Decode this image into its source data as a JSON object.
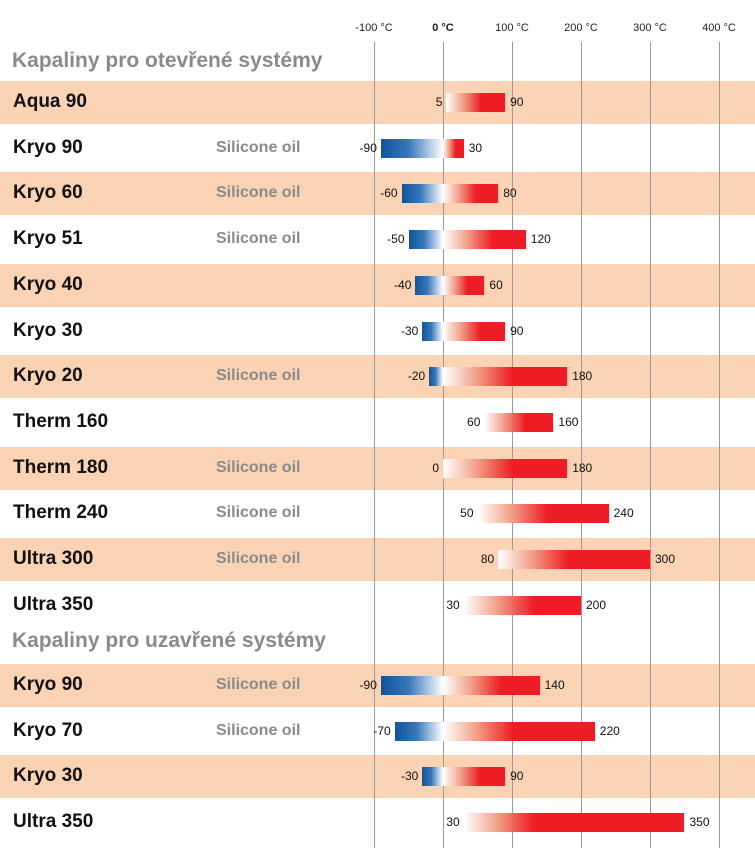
{
  "chart_data": {
    "type": "bar",
    "subtype": "floating-range",
    "x_ticks": [
      "-100 °C",
      "0 °C",
      "100 °C",
      "200 °C",
      "300 °C",
      "400 °C"
    ],
    "xlim": [
      -100,
      400
    ],
    "colors": {
      "cold": "#0a55a0",
      "hot": "#ee1c24",
      "band": "#fad2b4",
      "section_title": "#8a8a8a"
    },
    "sections": [
      {
        "title": "Kapaliny pro otevřené systémy",
        "rows": [
          {
            "name": "Aqua 90",
            "sub": "",
            "min": 5,
            "max": 90,
            "min_label": "5",
            "max_label": "90"
          },
          {
            "name": "Kryo 90",
            "sub": "Silicone oil",
            "min": -90,
            "max": 30,
            "min_label": "-90",
            "max_label": "30"
          },
          {
            "name": "Kryo 60",
            "sub": "Silicone oil",
            "min": -60,
            "max": 80,
            "min_label": "-60",
            "max_label": "80"
          },
          {
            "name": "Kryo 51",
            "sub": "Silicone oil",
            "min": -50,
            "max": 120,
            "min_label": "-50",
            "max_label": "120"
          },
          {
            "name": "Kryo 40",
            "sub": "",
            "min": -40,
            "max": 60,
            "min_label": "-40",
            "max_label": "60"
          },
          {
            "name": "Kryo 30",
            "sub": "",
            "min": -30,
            "max": 90,
            "min_label": "-30",
            "max_label": "90"
          },
          {
            "name": "Kryo 20",
            "sub": "Silicone oil",
            "min": -20,
            "max": 180,
            "min_label": "-20",
            "max_label": "180"
          },
          {
            "name": "Therm 160",
            "sub": "",
            "min": 60,
            "max": 160,
            "min_label": "60",
            "max_label": "160"
          },
          {
            "name": "Therm 180",
            "sub": "Silicone oil",
            "min": 0,
            "max": 180,
            "min_label": "0",
            "max_label": "180"
          },
          {
            "name": "Therm 240",
            "sub": "Silicone oil",
            "min": 50,
            "max": 240,
            "min_label": "50",
            "max_label": "240"
          },
          {
            "name": "Ultra 300",
            "sub": "Silicone oil",
            "min": 80,
            "max": 300,
            "min_label": "80",
            "max_label": "300"
          },
          {
            "name": "Ultra 350",
            "sub": "",
            "min": 30,
            "max": 200,
            "min_label": "30",
            "max_label": "200"
          }
        ]
      },
      {
        "title": "Kapaliny pro uzavřené systémy",
        "rows": [
          {
            "name": "Kryo 90",
            "sub": "Silicone oil",
            "min": -90,
            "max": 140,
            "min_label": "-90",
            "max_label": "140"
          },
          {
            "name": "Kryo 70",
            "sub": "Silicone oil",
            "min": -70,
            "max": 220,
            "min_label": "-70",
            "max_label": "220"
          },
          {
            "name": "Kryo 30",
            "sub": "",
            "min": -30,
            "max": 90,
            "min_label": "-30",
            "max_label": "90"
          },
          {
            "name": "Ultra 350",
            "sub": "",
            "min": 30,
            "max": 350,
            "min_label": "30",
            "max_label": "350"
          }
        ]
      }
    ]
  }
}
